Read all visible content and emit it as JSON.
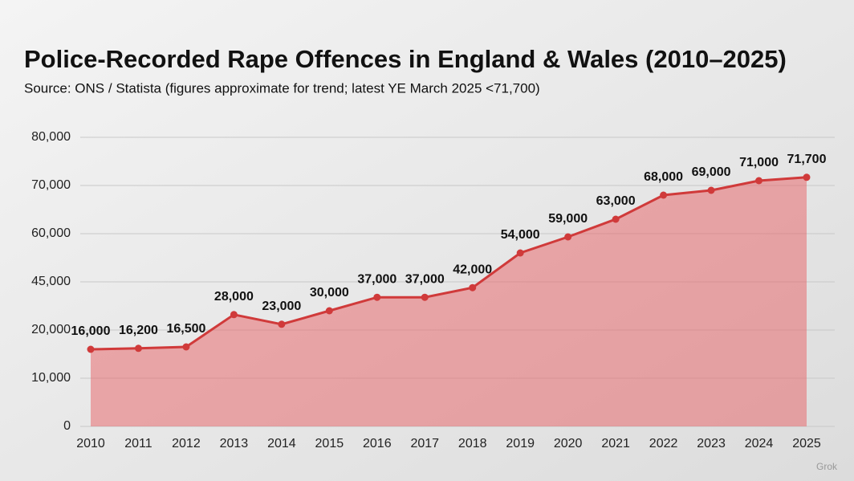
{
  "chart_data": {
    "type": "area-line",
    "title": "Police-Recorded Rape Offences in England & Wales (2010–2025)",
    "subtitle": "Source: ONS / Statista (figures approximate for trend; latest YE March 2025 <71,700)",
    "categories": [
      "2010",
      "2011",
      "2012",
      "2013",
      "2014",
      "2015",
      "2016",
      "2017",
      "2018",
      "2019",
      "2020",
      "2021",
      "2022",
      "2023",
      "2024",
      "2025"
    ],
    "values": [
      16000,
      16200,
      16500,
      28000,
      23000,
      30000,
      37000,
      37000,
      42000,
      54000,
      59000,
      63000,
      68000,
      69000,
      71000,
      71700
    ],
    "value_labels": [
      "16,000",
      "16,200",
      "16,500",
      "28,000",
      "23,000",
      "30,000",
      "37,000",
      "37,000",
      "42,000",
      "54,000",
      "59,000",
      "63,000",
      "68,000",
      "69,000",
      "71,000",
      "71,700"
    ],
    "color": "#d03a3a",
    "fill": "rgba(232,96,100,0.5)",
    "ylim": [
      0,
      80000
    ],
    "yticks": [
      0,
      {
        "value": 10000,
        "label": "10,000"
      },
      {
        "value": 20000,
        "label": "20,000"
      },
      {
        "value": 45000,
        "label": "45,000"
      },
      {
        "value": 60000,
        "label": "60,000"
      },
      {
        "value": 70000,
        "label": "70,000"
      },
      {
        "value": 80000,
        "label": "80,000"
      }
    ],
    "grid": true,
    "watermark": "Grok"
  }
}
